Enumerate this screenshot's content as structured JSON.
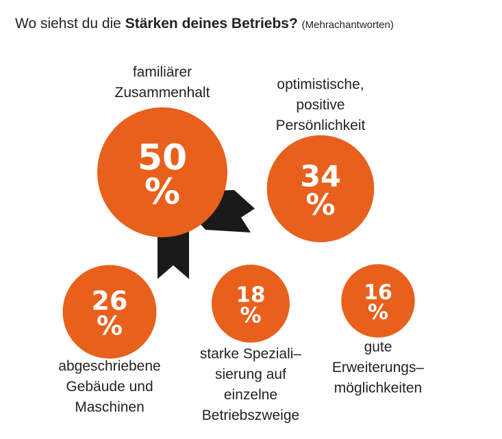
{
  "title": {
    "prefix": "Wo siehst du die ",
    "bold": "Stärken deines Betriebs?",
    "note": "(Mehrachantworten)"
  },
  "colors": {
    "bubble": "#e8601c",
    "ribbon": "#1a1a1a",
    "text": "#222222"
  },
  "chart_data": {
    "type": "bubble",
    "title": "Wo siehst du die Stärken deines Betriebs? (Mehrachantworten)",
    "categories": [
      "familiärer Zusammenhalt",
      "optimistische, positive Persönlichkeit",
      "abgeschriebene Gebäude und Maschinen",
      "starke Spezialisierung auf einzelne Betriebszweige",
      "gute Erweiterungsmöglichkeiten"
    ],
    "values": [
      50,
      34,
      26,
      18,
      16
    ],
    "unit": "%",
    "items": [
      {
        "label_lines": [
          "familiärer",
          "Zusammenhalt"
        ],
        "value": 50,
        "unit": "%"
      },
      {
        "label_lines": [
          "optimistische,",
          "positive",
          "Persönlichkeit"
        ],
        "value": 34,
        "unit": "%"
      },
      {
        "label_lines": [
          "abgeschriebene",
          "Gebäude und",
          "Maschinen"
        ],
        "value": 26,
        "unit": "%"
      },
      {
        "label_lines": [
          "starke Speziali–",
          "sierung auf",
          "einzelne",
          "Betriebszweige"
        ],
        "value": 18,
        "unit": "%"
      },
      {
        "label_lines": [
          "gute",
          "Erweiterungs–",
          "möglichkeiten"
        ],
        "value": 16,
        "unit": "%"
      }
    ]
  }
}
